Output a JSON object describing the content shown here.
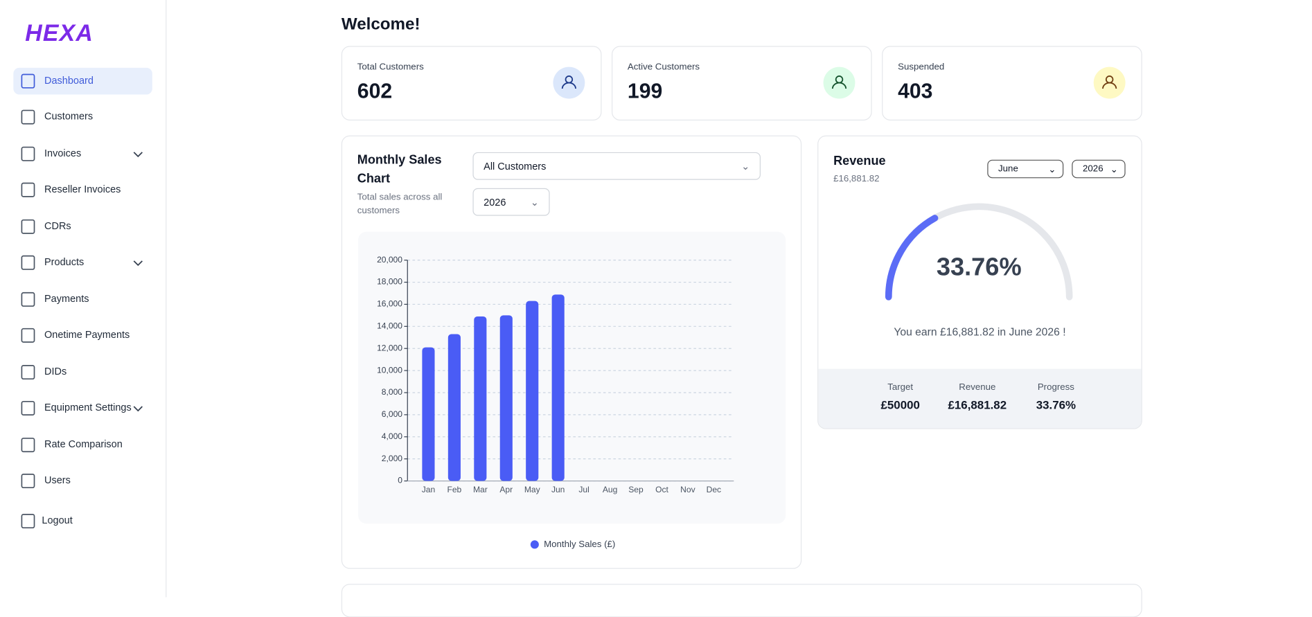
{
  "logo": "HEXA",
  "nav": [
    "Dashboard",
    "Customers",
    "Invoices",
    "Reseller Invoices",
    "CDRs",
    "Products",
    "Payments",
    "Onetime Payments",
    "DIDs",
    "Equipment Settings",
    "Rate Comparison",
    "Users",
    "Logout"
  ],
  "header": {
    "title": "Welcome!"
  },
  "stats": [
    {
      "label": "Total Customers",
      "value": 602
    },
    {
      "label": "Active Customers",
      "value": 199
    },
    {
      "label": "Suspended",
      "value": 403
    }
  ],
  "sales": {
    "filter": "All Customers",
    "year": "2026"
  },
  "chart_data": {
    "type": "bar",
    "title": "Monthly Sales Chart",
    "subtitle": "Total sales across all customers",
    "categories": [
      "Jan",
      "Feb",
      "Mar",
      "Apr",
      "May",
      "Jun",
      "Jul",
      "Aug",
      "Sep",
      "Oct",
      "Nov",
      "Dec"
    ],
    "series": [
      {
        "name": "Monthly Sales (£)",
        "color": "#4a5cf5",
        "values": [
          12100,
          13300,
          14900,
          15000,
          16300,
          16881.82,
          null,
          null,
          null,
          null,
          null,
          null
        ]
      }
    ],
    "ylim": [
      0,
      20000
    ],
    "yticks": [
      0,
      {
        "value": 2000,
        "label": "2,000"
      },
      {
        "value": 4000,
        "label": "4,000"
      },
      {
        "value": 6000,
        "label": "6,000"
      },
      {
        "value": 8000,
        "label": "8,000"
      },
      {
        "value": 10000,
        "label": "10,000"
      },
      {
        "value": 12000,
        "label": "12,000"
      },
      {
        "value": 14000,
        "label": "14,000"
      },
      {
        "value": 16000,
        "label": "16,000"
      },
      {
        "value": 18000,
        "label": "18,000"
      },
      {
        "value": 20000,
        "label": "20,000"
      }
    ],
    "grid": true
  },
  "revenue": {
    "title": "Revenue",
    "amount": "£16,881.82",
    "month": "June",
    "year": "2026",
    "gauge": {
      "value": 33.76,
      "label": "33.76%",
      "lim": [
        0,
        100
      ]
    },
    "message": "You earn £16,881.82 in June 2026 !",
    "footer": [
      {
        "label": "Target",
        "value": "£50000"
      },
      {
        "label": "Revenue",
        "value": "£16,881.82"
      },
      {
        "label": "Progress",
        "value": "33.76%"
      }
    ]
  }
}
